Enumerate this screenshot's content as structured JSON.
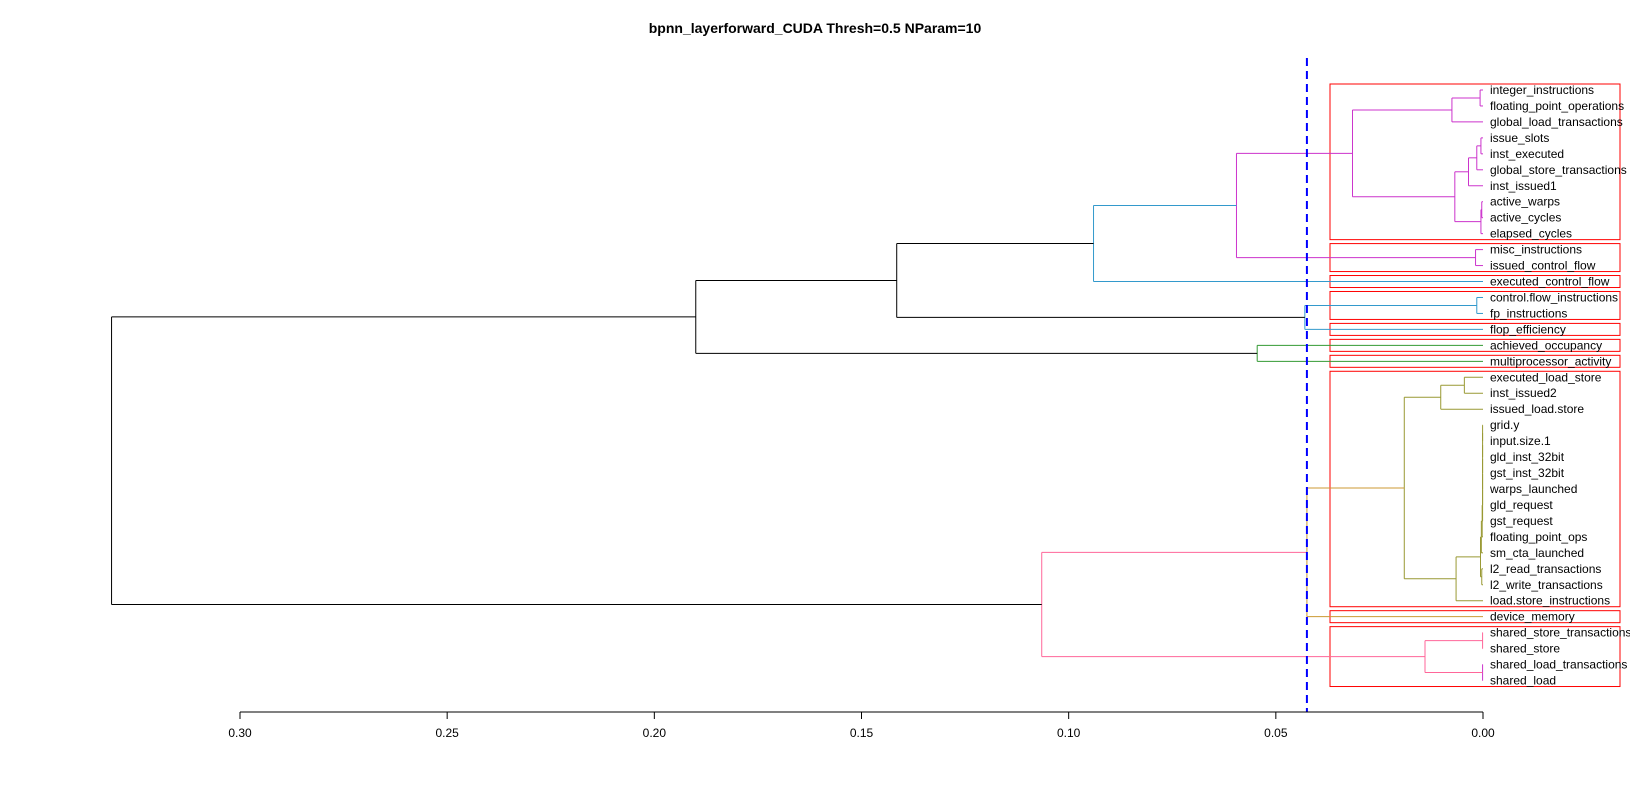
{
  "chart_data": {
    "type": "dendrogram",
    "title": "bpnn_layerforward_CUDA Thresh=0.5 NParam=10",
    "xlim": [
      0.3,
      0.0
    ],
    "x_ticks": [
      {
        "value": 0.3,
        "label": "0.30"
      },
      {
        "value": 0.25,
        "label": "0.25"
      },
      {
        "value": 0.2,
        "label": "0.20"
      },
      {
        "value": 0.15,
        "label": "0.15"
      },
      {
        "value": 0.1,
        "label": "0.10"
      },
      {
        "value": 0.05,
        "label": "0.05"
      },
      {
        "value": 0.0,
        "label": "0.00"
      }
    ],
    "threshold": 0.0425,
    "leaves": [
      "integer_instructions",
      "floating_point_operations",
      "global_load_transactions",
      "issue_slots",
      "inst_executed",
      "global_store_transactions",
      "inst_issued1",
      "active_warps",
      "active_cycles",
      "elapsed_cycles",
      "misc_instructions",
      "issued_control_flow",
      "executed_control_flow",
      "control.flow_instructions",
      "fp_instructions",
      "flop_efficiency",
      "achieved_occupancy",
      "multiprocessor_activity",
      "executed_load_store",
      "inst_issued2",
      "issued_load.store",
      "grid.y",
      "input.size.1",
      "gld_inst_32bit",
      "gst_inst_32bit",
      "warps_launched",
      "gld_request",
      "gst_request",
      "floating_point_ops",
      "sm_cta_launched",
      "l2_read_transactions",
      "l2_write_transactions",
      "load.store_instructions",
      "device_memory",
      "shared_store_transactions",
      "shared_store",
      "shared_load_transactions",
      "shared_load"
    ],
    "merges": [
      {
        "id": "n1",
        "left": "integer_instructions",
        "right": "floating_point_operations",
        "height": 0.0007,
        "color": "#cc33cc"
      },
      {
        "id": "n2",
        "left": "n1",
        "right": "global_load_transactions",
        "height": 0.0075,
        "color": "#cc33cc"
      },
      {
        "id": "n3",
        "left": "issue_slots",
        "right": "inst_executed",
        "height": 0.0005,
        "color": "#cc33cc"
      },
      {
        "id": "n4",
        "left": "n3",
        "right": "global_store_transactions",
        "height": 0.0015,
        "color": "#cc33cc"
      },
      {
        "id": "n5",
        "left": "n4",
        "right": "inst_issued1",
        "height": 0.0035,
        "color": "#cc33cc"
      },
      {
        "id": "n6",
        "left": "active_warps",
        "right": "active_cycles",
        "height": 0.0003,
        "color": "#cc33cc"
      },
      {
        "id": "n7",
        "left": "n6",
        "right": "elapsed_cycles",
        "height": 0.0005,
        "color": "#cc33cc"
      },
      {
        "id": "n8",
        "left": "n5",
        "right": "n7",
        "height": 0.0068,
        "color": "#cc33cc"
      },
      {
        "id": "n9",
        "left": "n2",
        "right": "n8",
        "height": 0.0315,
        "color": "#cc33cc"
      },
      {
        "id": "n10",
        "left": "misc_instructions",
        "right": "issued_control_flow",
        "height": 0.0018,
        "color": "#cc33cc"
      },
      {
        "id": "n11",
        "left": "n9",
        "right": "n10",
        "height": 0.0595,
        "color": "#cc33cc"
      },
      {
        "id": "n12",
        "left": "n11",
        "right": "executed_control_flow",
        "height": 0.094,
        "color": "#3399cc"
      },
      {
        "id": "n13",
        "left": "control.flow_instructions",
        "right": "fp_instructions",
        "height": 0.0015,
        "color": "#3399cc"
      },
      {
        "id": "n14",
        "left": "n13",
        "right": "flop_efficiency",
        "height": 0.043,
        "color": "#3399cc"
      },
      {
        "id": "n15",
        "left": "n12",
        "right": "n14",
        "height": 0.1415,
        "color": "#000000"
      },
      {
        "id": "n16",
        "left": "achieved_occupancy",
        "right": "multiprocessor_activity",
        "height": 0.0545,
        "color": "#339933"
      },
      {
        "id": "n17",
        "left": "n15",
        "right": "n16",
        "height": 0.19,
        "color": "#000000"
      },
      {
        "id": "n18",
        "left": "executed_load_store",
        "right": "inst_issued2",
        "height": 0.0045,
        "color": "#999933"
      },
      {
        "id": "n19",
        "left": "n18",
        "right": "issued_load.store",
        "height": 0.0102,
        "color": "#999933"
      },
      {
        "id": "n20",
        "left": "grid.y",
        "right": "input.size.1",
        "height": 0.0001,
        "color": "#999933"
      },
      {
        "id": "n21",
        "left": "n20",
        "right": "gld_inst_32bit",
        "height": 0.0001,
        "color": "#999933"
      },
      {
        "id": "n22",
        "left": "n21",
        "right": "gst_inst_32bit",
        "height": 0.0001,
        "color": "#999933"
      },
      {
        "id": "n23",
        "left": "n22",
        "right": "warps_launched",
        "height": 0.0001,
        "color": "#999933"
      },
      {
        "id": "n24",
        "left": "n23",
        "right": "gld_request",
        "height": 0.0001,
        "color": "#999933"
      },
      {
        "id": "n25",
        "left": "n24",
        "right": "gst_request",
        "height": 0.0001,
        "color": "#999933"
      },
      {
        "id": "n26",
        "left": "n25",
        "right": "floating_point_ops",
        "height": 0.0002,
        "color": "#999933"
      },
      {
        "id": "n27",
        "left": "n26",
        "right": "sm_cta_launched",
        "height": 0.0004,
        "color": "#999933"
      },
      {
        "id": "n28",
        "left": "l2_read_transactions",
        "right": "l2_write_transactions",
        "height": 0.0003,
        "color": "#999933"
      },
      {
        "id": "n29",
        "left": "n27",
        "right": "n28",
        "height": 0.0006,
        "color": "#999933"
      },
      {
        "id": "n30",
        "left": "n29",
        "right": "load.store_instructions",
        "height": 0.0065,
        "color": "#999933"
      },
      {
        "id": "n31",
        "left": "n19",
        "right": "n30",
        "height": 0.019,
        "color": "#999933"
      },
      {
        "id": "n32",
        "left": "n31",
        "right": "device_memory",
        "height": 0.0425,
        "color": "#cc9933"
      },
      {
        "id": "n33",
        "left": "shared_store_transactions",
        "right": "shared_store",
        "height": 0.0001,
        "color": "#ff6699"
      },
      {
        "id": "n34",
        "left": "shared_load_transactions",
        "right": "shared_load",
        "height": 0.0001,
        "color": "#cc33cc"
      },
      {
        "id": "n35",
        "left": "n33",
        "right": "n34",
        "height": 0.014,
        "color": "#ff6699"
      },
      {
        "id": "n36",
        "left": "n32",
        "right": "n35",
        "height": 0.1065,
        "color": "#ff6699"
      },
      {
        "id": "n37",
        "left": "n17",
        "right": "n36",
        "height": 0.331,
        "color": "#000000"
      }
    ],
    "cluster_boxes": [
      {
        "first": 0,
        "last": 9,
        "color": "#ff0000"
      },
      {
        "first": 10,
        "last": 11,
        "color": "#ff0000"
      },
      {
        "first": 12,
        "last": 12,
        "color": "#ff0000"
      },
      {
        "first": 13,
        "last": 14,
        "color": "#ff0000"
      },
      {
        "first": 15,
        "last": 15,
        "color": "#ff0000"
      },
      {
        "first": 16,
        "last": 16,
        "color": "#ff0000"
      },
      {
        "first": 17,
        "last": 17,
        "color": "#ff0000"
      },
      {
        "first": 18,
        "last": 32,
        "color": "#ff0000"
      },
      {
        "first": 33,
        "last": 33,
        "color": "#ff0000"
      },
      {
        "first": 34,
        "last": 37,
        "color": "#ff0000"
      }
    ],
    "colors": {
      "threshold_line": "#0000ff",
      "axis": "#000000",
      "cluster_box": "#ff0000"
    }
  }
}
